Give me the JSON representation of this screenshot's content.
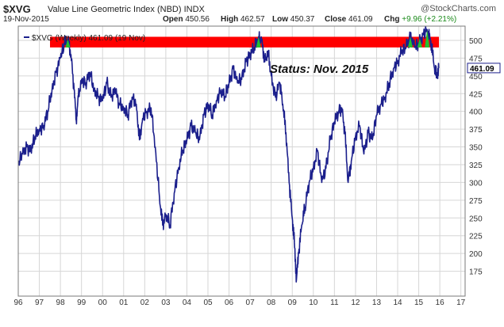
{
  "header": {
    "symbol": "$XVG",
    "index_name": "Value Line Geometric Index (NBD)",
    "exchange": "INDX",
    "brand": "@StockCharts.com",
    "date": "19-Nov-2015",
    "open_label": "Open",
    "open_value": "450.56",
    "high_label": "High",
    "high_value": "462.57",
    "low_label": "Low",
    "low_value": "450.37",
    "close_label": "Close",
    "close_value": "461.09",
    "chg_label": "Chg",
    "chg_value": "+9.96 (+2.21%)"
  },
  "colors": {
    "line": "#1b1f8c",
    "band": "#ff0000",
    "highlight": "#22c12e",
    "grid": "#d6d6d6",
    "plot_bg": "#ffffff",
    "border": "#7a7a7a"
  },
  "chart_data": {
    "type": "line",
    "legend": "$XVG (Weekly) 461.09 (19 Nov)",
    "last_value_label": "461.09",
    "annotation": "Status: Nov. 2015",
    "band": {
      "from": 490,
      "to": 505
    },
    "ylim": [
      140,
      520
    ],
    "xlim": [
      1996,
      2017.2
    ],
    "y_ticks": [
      175,
      200,
      225,
      250,
      275,
      300,
      325,
      350,
      375,
      400,
      425,
      450,
      475,
      500
    ],
    "x_ticks": [
      {
        "x": 1996,
        "label": "96"
      },
      {
        "x": 1997,
        "label": "97"
      },
      {
        "x": 1998,
        "label": "98"
      },
      {
        "x": 1999,
        "label": "99"
      },
      {
        "x": 2000,
        "label": "00"
      },
      {
        "x": 2001,
        "label": "01"
      },
      {
        "x": 2002,
        "label": "02"
      },
      {
        "x": 2003,
        "label": "03"
      },
      {
        "x": 2004,
        "label": "04"
      },
      {
        "x": 2005,
        "label": "05"
      },
      {
        "x": 2006,
        "label": "06"
      },
      {
        "x": 2007,
        "label": "07"
      },
      {
        "x": 2008,
        "label": "08"
      },
      {
        "x": 2009,
        "label": "09"
      },
      {
        "x": 2010,
        "label": "10"
      },
      {
        "x": 2011,
        "label": "11"
      },
      {
        "x": 2012,
        "label": "12"
      },
      {
        "x": 2013,
        "label": "13"
      },
      {
        "x": 2014,
        "label": "14"
      },
      {
        "x": 2015,
        "label": "15"
      },
      {
        "x": 2016,
        "label": "16"
      },
      {
        "x": 2017,
        "label": "17"
      }
    ],
    "grid": true,
    "series": [
      {
        "values": [
          [
            1996.0,
            325
          ],
          [
            1996.2,
            340
          ],
          [
            1996.4,
            350
          ],
          [
            1996.6,
            345
          ],
          [
            1996.8,
            365
          ],
          [
            1997.0,
            375
          ],
          [
            1997.2,
            380
          ],
          [
            1997.4,
            400
          ],
          [
            1997.6,
            430
          ],
          [
            1997.8,
            455
          ],
          [
            1998.0,
            475
          ],
          [
            1998.2,
            495
          ],
          [
            1998.35,
            502
          ],
          [
            1998.5,
            480
          ],
          [
            1998.65,
            430
          ],
          [
            1998.75,
            388
          ],
          [
            1998.85,
            420
          ],
          [
            1999.0,
            445
          ],
          [
            1999.2,
            440
          ],
          [
            1999.4,
            455
          ],
          [
            1999.6,
            430
          ],
          [
            1999.8,
            420
          ],
          [
            2000.0,
            415
          ],
          [
            2000.2,
            440
          ],
          [
            2000.4,
            420
          ],
          [
            2000.6,
            430
          ],
          [
            2000.8,
            410
          ],
          [
            2001.0,
            405
          ],
          [
            2001.2,
            395
          ],
          [
            2001.4,
            420
          ],
          [
            2001.6,
            410
          ],
          [
            2001.75,
            360
          ],
          [
            2001.9,
            390
          ],
          [
            2002.1,
            400
          ],
          [
            2002.3,
            405
          ],
          [
            2002.5,
            350
          ],
          [
            2002.7,
            280
          ],
          [
            2002.85,
            240
          ],
          [
            2003.0,
            255
          ],
          [
            2003.2,
            240
          ],
          [
            2003.4,
            285
          ],
          [
            2003.6,
            320
          ],
          [
            2003.8,
            345
          ],
          [
            2004.0,
            360
          ],
          [
            2004.2,
            380
          ],
          [
            2004.4,
            370
          ],
          [
            2004.6,
            360
          ],
          [
            2004.8,
            395
          ],
          [
            2005.0,
            410
          ],
          [
            2005.2,
            395
          ],
          [
            2005.4,
            415
          ],
          [
            2005.6,
            430
          ],
          [
            2005.8,
            420
          ],
          [
            2006.0,
            440
          ],
          [
            2006.2,
            460
          ],
          [
            2006.4,
            440
          ],
          [
            2006.6,
            445
          ],
          [
            2006.8,
            470
          ],
          [
            2007.0,
            480
          ],
          [
            2007.2,
            490
          ],
          [
            2007.4,
            505
          ],
          [
            2007.55,
            500
          ],
          [
            2007.7,
            470
          ],
          [
            2007.85,
            485
          ],
          [
            2008.0,
            450
          ],
          [
            2008.2,
            420
          ],
          [
            2008.4,
            440
          ],
          [
            2008.55,
            410
          ],
          [
            2008.7,
            370
          ],
          [
            2008.85,
            300
          ],
          [
            2009.0,
            250
          ],
          [
            2009.1,
            215
          ],
          [
            2009.2,
            163
          ],
          [
            2009.3,
            200
          ],
          [
            2009.45,
            240
          ],
          [
            2009.6,
            265
          ],
          [
            2009.8,
            300
          ],
          [
            2010.0,
            320
          ],
          [
            2010.2,
            345
          ],
          [
            2010.4,
            300
          ],
          [
            2010.6,
            320
          ],
          [
            2010.8,
            360
          ],
          [
            2011.0,
            385
          ],
          [
            2011.2,
            400
          ],
          [
            2011.35,
            405
          ],
          [
            2011.5,
            370
          ],
          [
            2011.65,
            300
          ],
          [
            2011.8,
            330
          ],
          [
            2012.0,
            365
          ],
          [
            2012.2,
            380
          ],
          [
            2012.4,
            340
          ],
          [
            2012.6,
            370
          ],
          [
            2012.8,
            360
          ],
          [
            2013.0,
            395
          ],
          [
            2013.2,
            410
          ],
          [
            2013.4,
            420
          ],
          [
            2013.6,
            440
          ],
          [
            2013.8,
            460
          ],
          [
            2014.0,
            470
          ],
          [
            2014.2,
            485
          ],
          [
            2014.4,
            490
          ],
          [
            2014.6,
            505
          ],
          [
            2014.8,
            490
          ],
          [
            2015.0,
            495
          ],
          [
            2015.2,
            508
          ],
          [
            2015.4,
            515
          ],
          [
            2015.5,
            505
          ],
          [
            2015.6,
            495
          ],
          [
            2015.75,
            460
          ],
          [
            2015.85,
            450
          ],
          [
            2015.95,
            461.09
          ]
        ]
      }
    ],
    "highlight_peaks": [
      {
        "x": 1998.35,
        "y": 502
      },
      {
        "x": 2007.4,
        "y": 505
      },
      {
        "x": 2014.6,
        "y": 505
      },
      {
        "x": 2015.05,
        "y": 503
      },
      {
        "x": 2015.4,
        "y": 515
      }
    ]
  }
}
